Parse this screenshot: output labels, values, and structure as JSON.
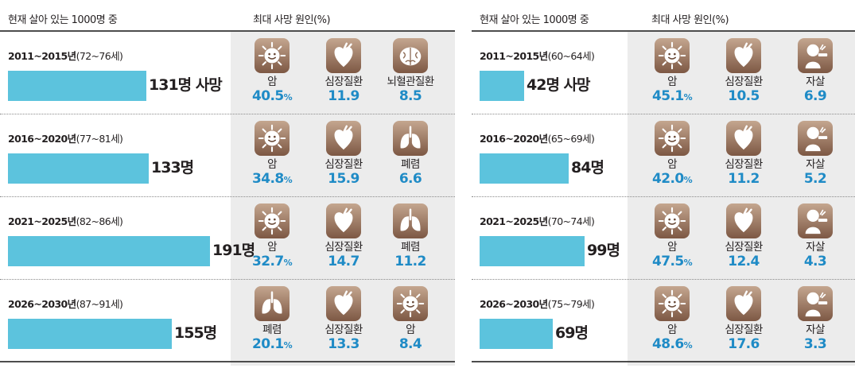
{
  "chart_data": [
    {
      "type": "bar",
      "header_left": "현재 살아 있는 1000명 중",
      "header_right": "최대 사망 원인(%)",
      "rows": [
        {
          "period": "2011~2015년",
          "age": "(72~76세)",
          "value": 131,
          "label": "131명 사망",
          "causes": [
            {
              "name": "암",
              "value": "40.5",
              "unit": "%",
              "icon": "cancer-icon"
            },
            {
              "name": "심장질환",
              "value": "11.9",
              "unit": "",
              "icon": "heart-icon"
            },
            {
              "name": "뇌혈관질환",
              "value": "8.5",
              "unit": "",
              "icon": "brain-icon"
            }
          ]
        },
        {
          "period": "2016~2020년",
          "age": "(77~81세)",
          "value": 133,
          "label": "133명",
          "causes": [
            {
              "name": "암",
              "value": "34.8",
              "unit": "%",
              "icon": "cancer-icon"
            },
            {
              "name": "심장질환",
              "value": "15.9",
              "unit": "",
              "icon": "heart-icon"
            },
            {
              "name": "폐렴",
              "value": "6.6",
              "unit": "",
              "icon": "lungs-icon"
            }
          ]
        },
        {
          "period": "2021~2025년",
          "age": "(82~86세)",
          "value": 191,
          "label": "191명",
          "causes": [
            {
              "name": "암",
              "value": "32.7",
              "unit": "%",
              "icon": "cancer-icon"
            },
            {
              "name": "심장질환",
              "value": "14.7",
              "unit": "",
              "icon": "heart-icon"
            },
            {
              "name": "폐렴",
              "value": "11.2",
              "unit": "",
              "icon": "lungs-icon"
            }
          ]
        },
        {
          "period": "2026~2030년",
          "age": "(87~91세)",
          "value": 155,
          "label": "155명",
          "causes": [
            {
              "name": "폐렴",
              "value": "20.1",
              "unit": "%",
              "icon": "lungs-icon"
            },
            {
              "name": "심장질환",
              "value": "13.3",
              "unit": "",
              "icon": "heart-icon"
            },
            {
              "name": "암",
              "value": "8.4",
              "unit": "",
              "icon": "cancer-icon"
            }
          ]
        }
      ]
    },
    {
      "type": "bar",
      "header_left": "현재 살아 있는 1000명 중",
      "header_right": "최대 사망 원인(%)",
      "rows": [
        {
          "period": "2011~2015년",
          "age": "(60~64세)",
          "value": 42,
          "label": "42명 사망",
          "causes": [
            {
              "name": "암",
              "value": "45.1",
              "unit": "%",
              "icon": "cancer-icon"
            },
            {
              "name": "심장질환",
              "value": "10.5",
              "unit": "",
              "icon": "heart-icon"
            },
            {
              "name": "자살",
              "value": "6.9",
              "unit": "",
              "icon": "suicide-icon"
            }
          ]
        },
        {
          "period": "2016~2020년",
          "age": "(65~69세)",
          "value": 84,
          "label": "84명",
          "causes": [
            {
              "name": "암",
              "value": "42.0",
              "unit": "%",
              "icon": "cancer-icon"
            },
            {
              "name": "심장질환",
              "value": "11.2",
              "unit": "",
              "icon": "heart-icon"
            },
            {
              "name": "자살",
              "value": "5.2",
              "unit": "",
              "icon": "suicide-icon"
            }
          ]
        },
        {
          "period": "2021~2025년",
          "age": "(70~74세)",
          "value": 99,
          "label": "99명",
          "causes": [
            {
              "name": "암",
              "value": "47.5",
              "unit": "%",
              "icon": "cancer-icon"
            },
            {
              "name": "심장질환",
              "value": "12.4",
              "unit": "",
              "icon": "heart-icon"
            },
            {
              "name": "자살",
              "value": "4.3",
              "unit": "",
              "icon": "suicide-icon"
            }
          ]
        },
        {
          "period": "2026~2030년",
          "age": "(75~79세)",
          "value": 69,
          "label": "69명",
          "causes": [
            {
              "name": "암",
              "value": "48.6",
              "unit": "%",
              "icon": "cancer-icon"
            },
            {
              "name": "심장질환",
              "value": "17.6",
              "unit": "",
              "icon": "heart-icon"
            },
            {
              "name": "자살",
              "value": "3.3",
              "unit": "",
              "icon": "suicide-icon"
            }
          ]
        }
      ]
    }
  ]
}
